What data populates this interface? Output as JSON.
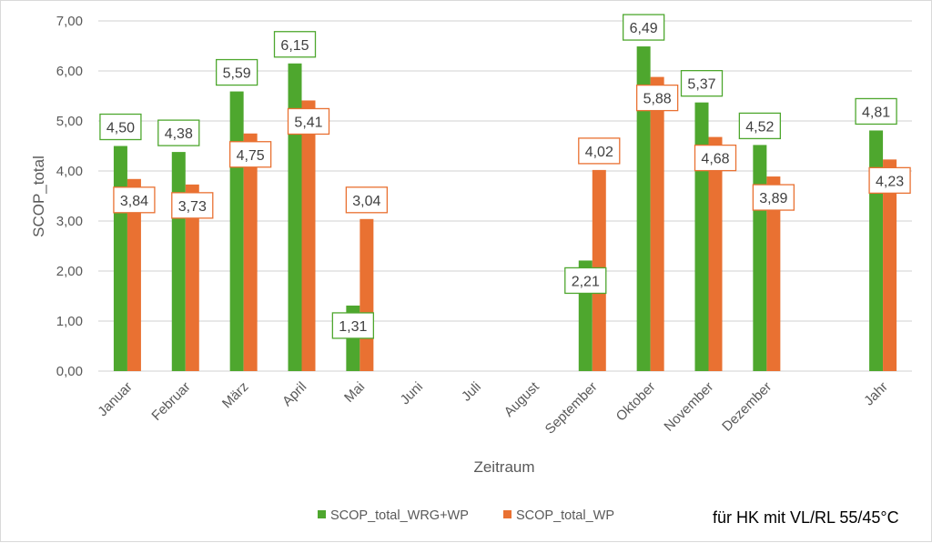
{
  "chart_data": {
    "type": "bar",
    "title": "",
    "xlabel": "Zeitraum",
    "ylabel": "SCOP_total",
    "ylim": [
      0,
      7
    ],
    "ytick_step": 1,
    "ytick_labels": [
      "0,00",
      "1,00",
      "2,00",
      "3,00",
      "4,00",
      "5,00",
      "6,00",
      "7,00"
    ],
    "grid": true,
    "categories": [
      "Januar",
      "Februar",
      "März",
      "April",
      "Mai",
      "Juni",
      "Juli",
      "August",
      "September",
      "Oktober",
      "November",
      "Dezember",
      "",
      "Jahr"
    ],
    "series": [
      {
        "name": "SCOP_total_WRG+WP",
        "color": "#4ea72e",
        "values": [
          4.5,
          4.38,
          5.59,
          6.15,
          1.31,
          null,
          null,
          null,
          2.21,
          6.49,
          5.37,
          4.52,
          null,
          4.81
        ],
        "labels": [
          "4,50",
          "4,38",
          "5,59",
          "6,15",
          "1,31",
          null,
          null,
          null,
          "2,21",
          "6,49",
          "5,37",
          "4,52",
          null,
          "4,81"
        ]
      },
      {
        "name": "SCOP_total_WP",
        "color": "#e97132",
        "values": [
          3.84,
          3.73,
          4.75,
          5.41,
          3.04,
          null,
          null,
          null,
          4.02,
          5.88,
          4.68,
          3.89,
          null,
          4.23
        ],
        "labels": [
          "3,84",
          "3,73",
          "4,75",
          "5,41",
          "3,04",
          null,
          null,
          null,
          "4,02",
          "5,88",
          "4,68",
          "3,89",
          null,
          "4,23"
        ]
      }
    ],
    "legend_position": "bottom",
    "annotation": "für HK mit VL/RL 55/45°C"
  }
}
